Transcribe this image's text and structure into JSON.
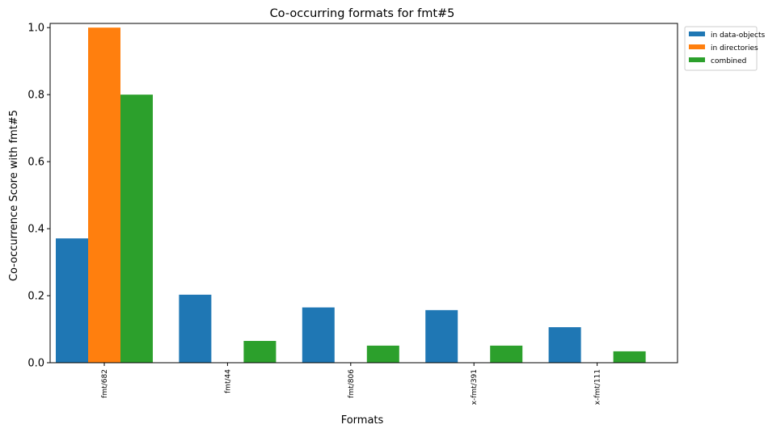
{
  "chart_data": {
    "type": "bar",
    "title": "Co-occurring formats for fmt#5",
    "xlabel": "Formats",
    "ylabel": "Co-occurrence Score with fmt#5",
    "categories": [
      "fmt/682",
      "fmt/44",
      "fmt/806",
      "x-fmt/391",
      "x-fmt/111"
    ],
    "series": [
      {
        "name": "in data-objects",
        "color": "#1f77b4",
        "values": [
          0.371,
          0.203,
          0.165,
          0.157,
          0.106
        ]
      },
      {
        "name": "in directories",
        "color": "#ff7f0e",
        "values": [
          1.0,
          0.0,
          0.0,
          0.0,
          0.0
        ]
      },
      {
        "name": "combined",
        "color": "#2ca02c",
        "values": [
          0.8,
          0.065,
          0.051,
          0.051,
          0.034
        ]
      }
    ],
    "ylim": [
      0,
      1.0125
    ],
    "yticks": [
      "0.0",
      "0.2",
      "0.4",
      "0.6",
      "0.8",
      "1.0"
    ],
    "ytick_values": [
      0,
      0.2,
      0.4,
      0.6,
      0.8,
      1.0
    ],
    "grid": false,
    "legend_position": "outside-top-right"
  }
}
